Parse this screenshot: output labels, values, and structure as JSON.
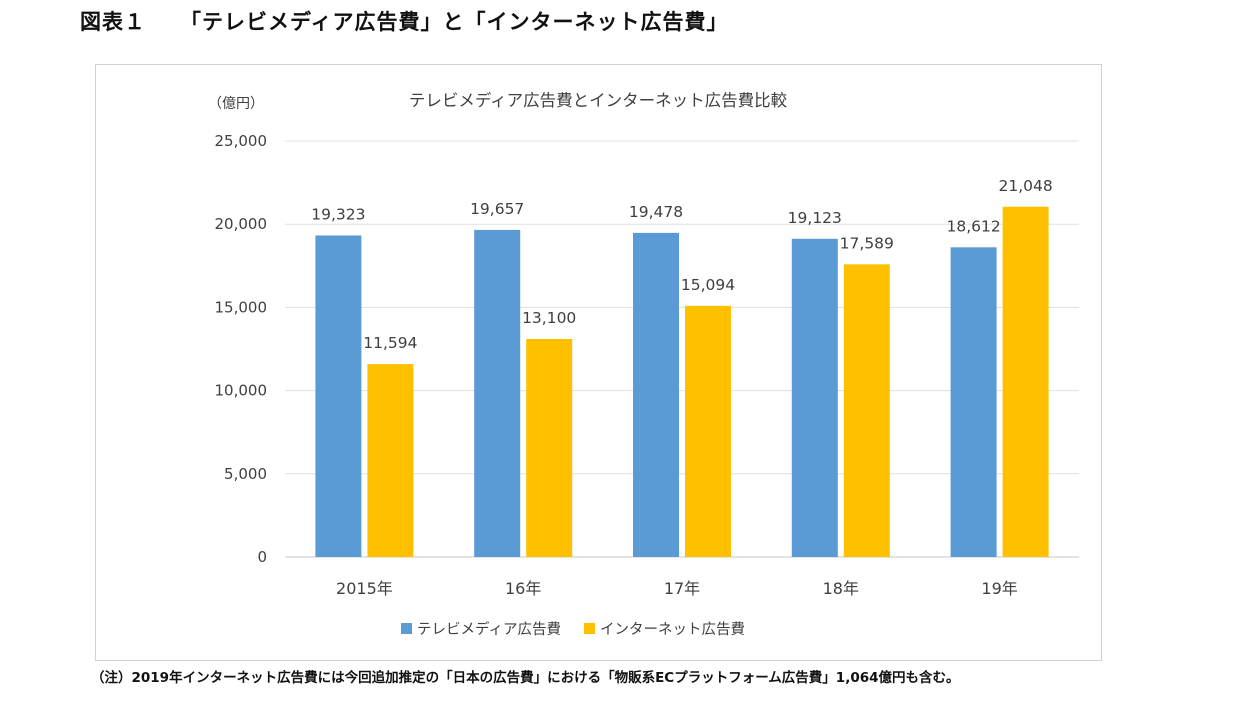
{
  "figure": {
    "label": "図表１",
    "heading": "「テレビメディア広告費」と「インターネット広告費」"
  },
  "chart_data": {
    "type": "bar",
    "title": "テレビメディア広告費とインターネット広告費比較",
    "ylabel": "（億円）",
    "xlabel": "",
    "ylim": [
      0,
      25000
    ],
    "yticks": [
      0,
      5000,
      10000,
      15000,
      20000,
      25000
    ],
    "ytick_labels": [
      "0",
      "5,000",
      "10,000",
      "15,000",
      "20,000",
      "25,000"
    ],
    "grid": true,
    "legend_position": "bottom-center",
    "categories": [
      "2015年",
      "16年",
      "17年",
      "18年",
      "19年"
    ],
    "series": [
      {
        "name": "テレビメディア広告費",
        "color": "#5B9BD5",
        "values": [
          19323,
          19657,
          19478,
          19123,
          18612
        ],
        "labels": [
          "19,323",
          "19,657",
          "19,478",
          "19,123",
          "18,612"
        ]
      },
      {
        "name": "インターネット広告費",
        "color": "#FFC000",
        "values": [
          11594,
          13100,
          15094,
          17589,
          21048
        ],
        "labels": [
          "11,594",
          "13,100",
          "15,094",
          "17,589",
          "21,048"
        ]
      }
    ]
  },
  "note": "（注）2019年インターネット広告費には今回追加推定の「日本の広告費」における「物販系ECプラットフォーム広告費」1,064億円も含む。"
}
